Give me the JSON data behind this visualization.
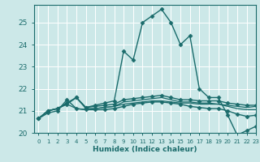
{
  "title": "",
  "xlabel": "Humidex (Indice chaleur)",
  "ylabel": "",
  "bg_color": "#cce8e8",
  "line_color": "#1a6b6b",
  "grid_color": "#ffffff",
  "xlim": [
    -0.5,
    23
  ],
  "ylim": [
    20,
    25.8
  ],
  "yticks": [
    20,
    21,
    22,
    23,
    24,
    25
  ],
  "xticks": [
    0,
    1,
    2,
    3,
    4,
    5,
    6,
    7,
    8,
    9,
    10,
    11,
    12,
    13,
    14,
    15,
    16,
    17,
    18,
    19,
    20,
    21,
    22,
    23
  ],
  "lines": [
    {
      "x": [
        0,
        1,
        2,
        3,
        4,
        5,
        6,
        7,
        8,
        9,
        10,
        11,
        12,
        13,
        14,
        15,
        16,
        17,
        18,
        19,
        20,
        21,
        22,
        23
      ],
      "y": [
        20.65,
        21.0,
        21.1,
        21.3,
        21.6,
        21.15,
        21.25,
        21.35,
        21.45,
        23.7,
        23.3,
        25.0,
        25.3,
        25.6,
        25.0,
        24.0,
        24.4,
        22.0,
        21.6,
        21.6,
        20.8,
        19.9,
        20.1,
        20.3
      ],
      "marker": "D",
      "markersize": 2.5,
      "lw": 1.0
    },
    {
      "x": [
        0,
        1,
        2,
        3,
        4,
        5,
        6,
        7,
        8,
        9,
        10,
        11,
        12,
        13,
        14,
        15,
        16,
        17,
        18,
        19,
        20,
        21,
        22,
        23
      ],
      "y": [
        20.65,
        21.0,
        21.1,
        21.35,
        21.6,
        21.15,
        21.2,
        21.25,
        21.3,
        21.5,
        21.55,
        21.6,
        21.65,
        21.7,
        21.6,
        21.5,
        21.5,
        21.45,
        21.45,
        21.45,
        21.35,
        21.3,
        21.25,
        21.25
      ],
      "marker": "D",
      "markersize": 2.5,
      "lw": 1.0
    },
    {
      "x": [
        0,
        1,
        2,
        3,
        4,
        5,
        6,
        7,
        8,
        9,
        10,
        11,
        12,
        13,
        14,
        15,
        16,
        17,
        18,
        19,
        20,
        21,
        22,
        23
      ],
      "y": [
        20.65,
        21.0,
        21.1,
        21.35,
        21.6,
        21.1,
        21.1,
        21.15,
        21.2,
        21.4,
        21.45,
        21.5,
        21.55,
        21.6,
        21.5,
        21.4,
        21.4,
        21.35,
        21.35,
        21.3,
        21.2,
        21.1,
        21.05,
        21.05
      ],
      "marker": null,
      "markersize": 0,
      "lw": 0.9
    },
    {
      "x": [
        0,
        1,
        2,
        3,
        4,
        5,
        6,
        7,
        8,
        9,
        10,
        11,
        12,
        13,
        14,
        15,
        16,
        17,
        18,
        19,
        20,
        21,
        22,
        23
      ],
      "y": [
        20.65,
        21.0,
        21.1,
        21.3,
        21.1,
        21.05,
        21.1,
        21.15,
        21.2,
        21.3,
        21.35,
        21.4,
        21.45,
        21.45,
        21.4,
        21.35,
        21.35,
        21.3,
        21.3,
        21.3,
        21.25,
        21.2,
        21.15,
        21.2
      ],
      "marker": null,
      "markersize": 0,
      "lw": 0.9
    },
    {
      "x": [
        0,
        1,
        2,
        3,
        4,
        5,
        6,
        7,
        8,
        9,
        10,
        11,
        12,
        13,
        14,
        15,
        16,
        17,
        18,
        19,
        20,
        21,
        22,
        23
      ],
      "y": [
        20.65,
        20.9,
        21.0,
        21.5,
        21.1,
        21.05,
        21.05,
        21.05,
        21.1,
        21.2,
        21.3,
        21.35,
        21.4,
        21.4,
        21.35,
        21.3,
        21.2,
        21.15,
        21.1,
        21.1,
        21.0,
        20.85,
        20.75,
        20.8
      ],
      "marker": "D",
      "markersize": 2.5,
      "lw": 1.0
    }
  ]
}
